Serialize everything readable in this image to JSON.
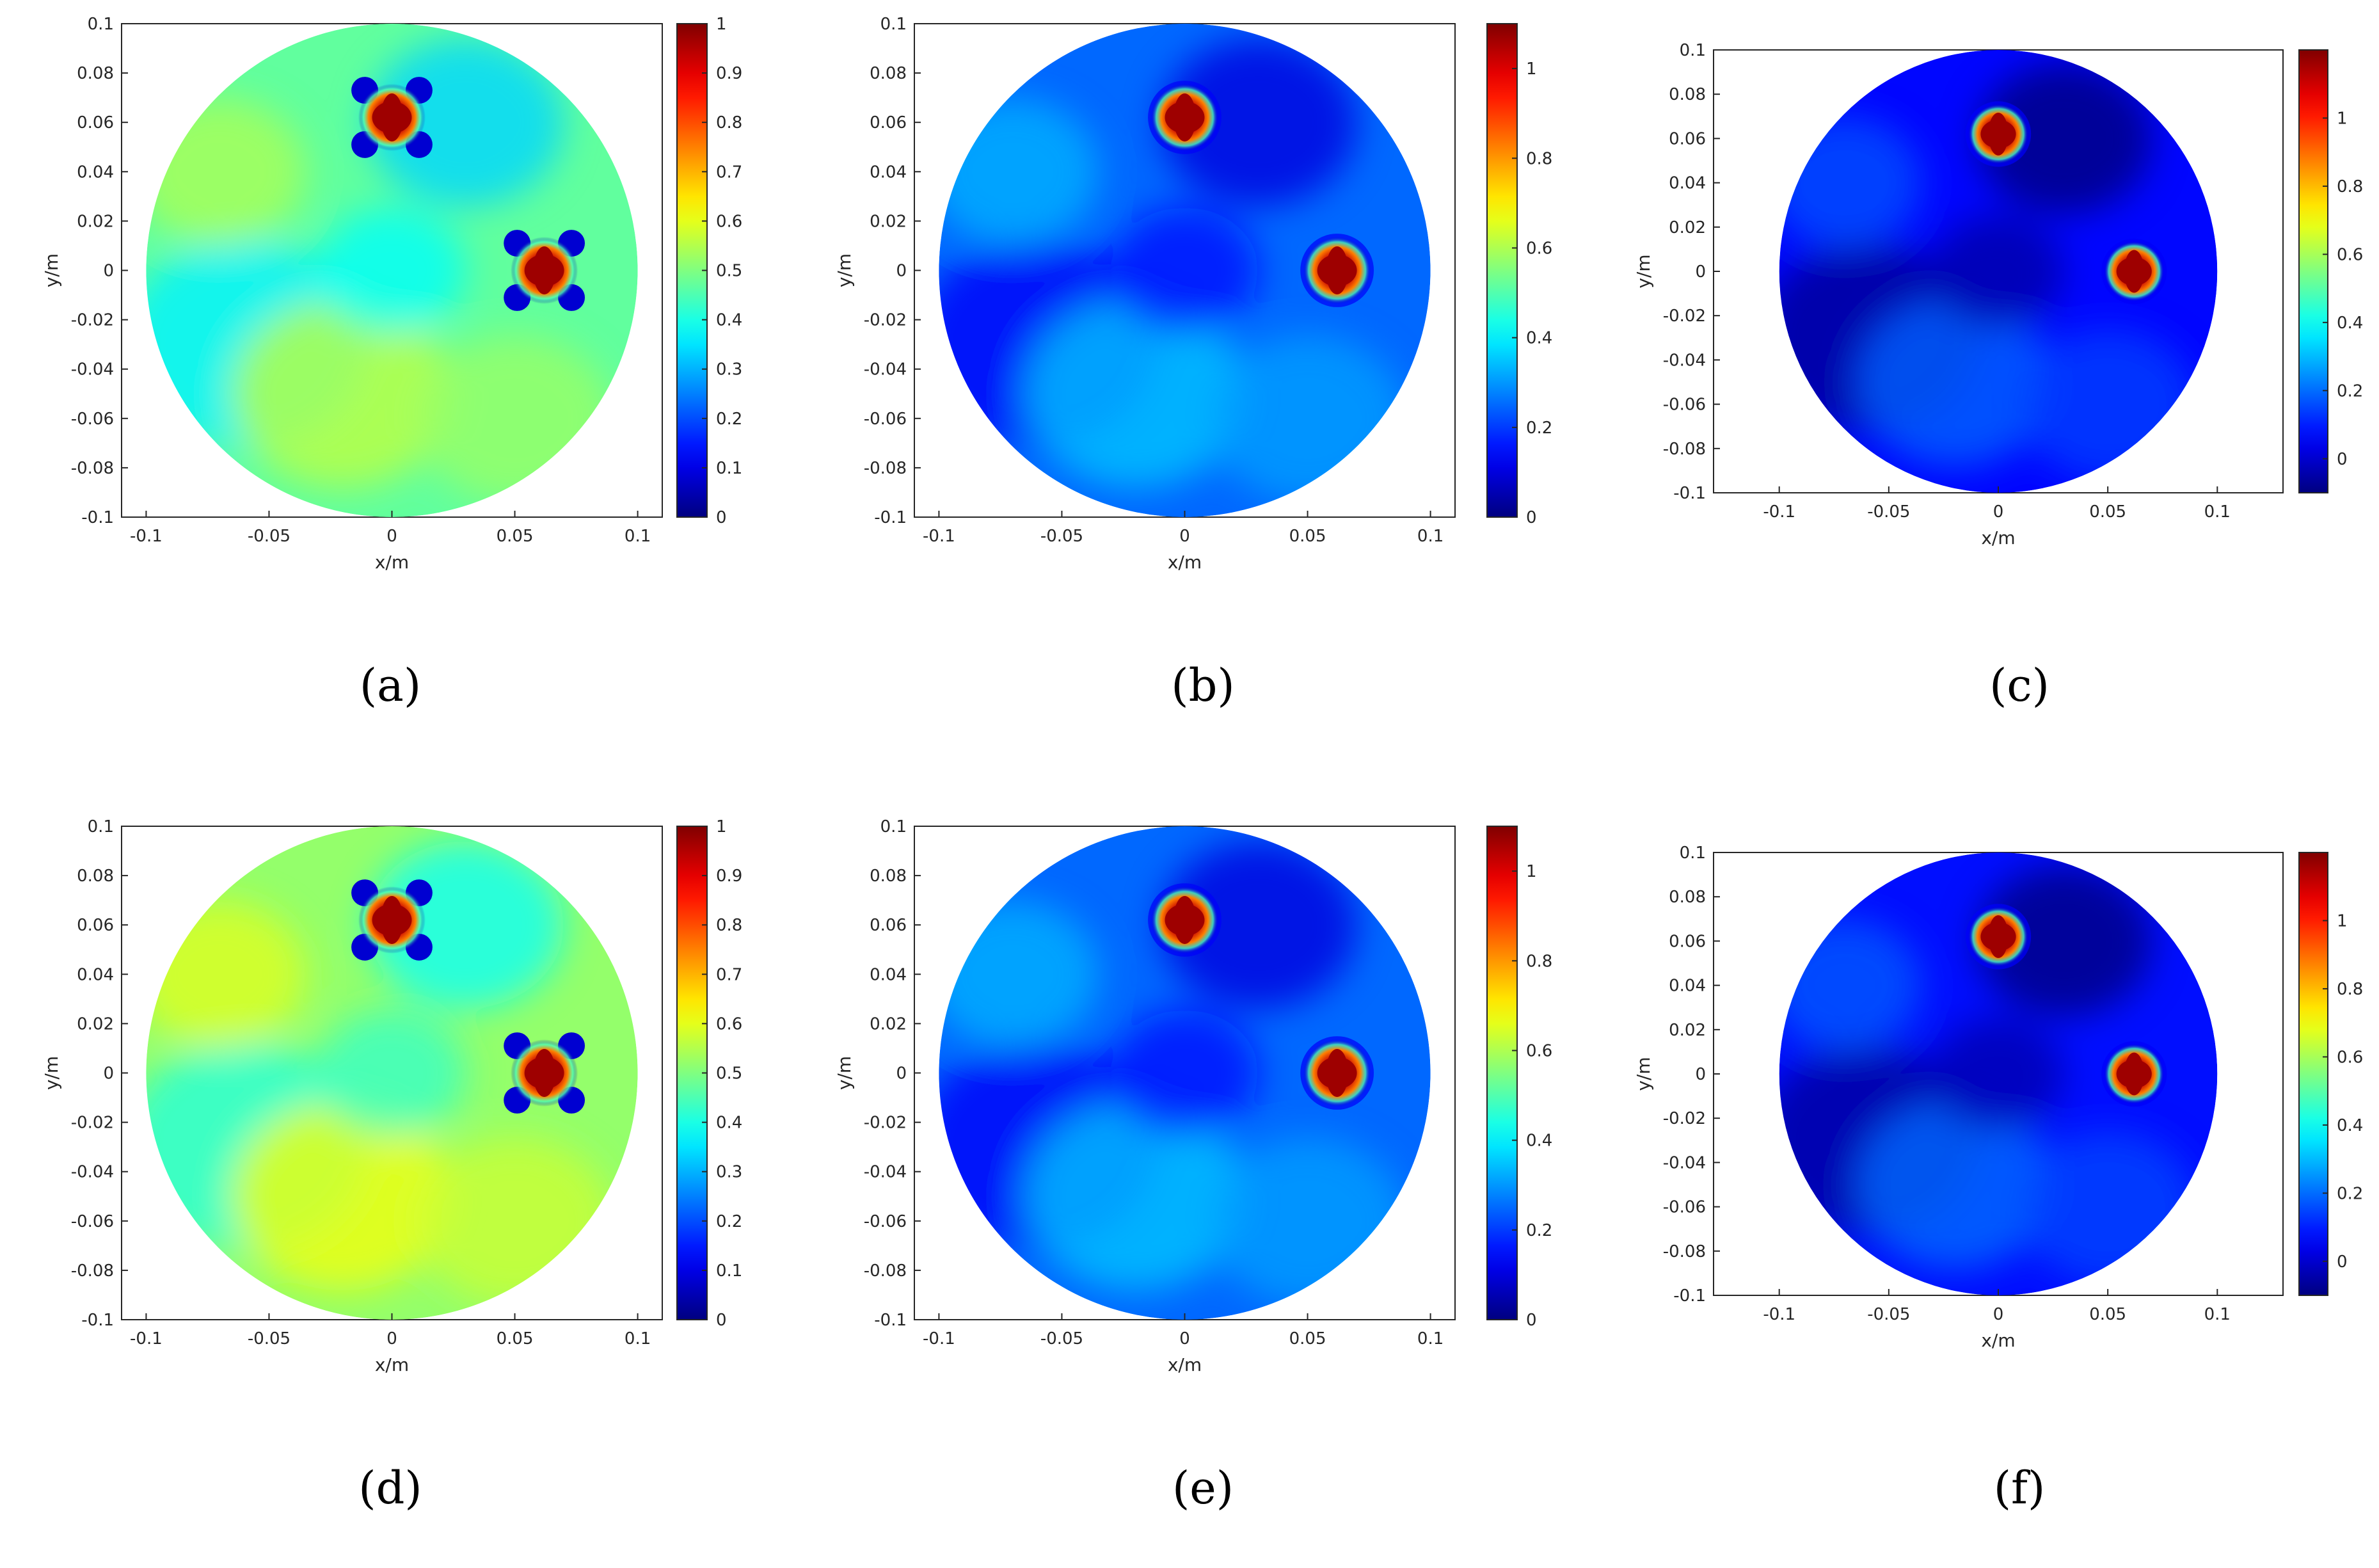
{
  "figure": {
    "panels": [
      {
        "id": "a",
        "label": "(a)",
        "colorbar_max": 1.0,
        "colorbar_ticks": [
          "0",
          "0.1",
          "0.2",
          "0.3",
          "0.4",
          "0.5",
          "0.6",
          "0.7",
          "0.8",
          "0.9",
          "1"
        ]
      },
      {
        "id": "b",
        "label": "(b)",
        "colorbar_max": 1.1,
        "colorbar_ticks": [
          "0",
          "0.2",
          "0.4",
          "0.6",
          "0.8",
          "1"
        ]
      },
      {
        "id": "c",
        "label": "(c)",
        "colorbar_max": 1.2,
        "colorbar_ticks": [
          "0",
          "0.2",
          "0.4",
          "0.6",
          "0.8",
          "1"
        ]
      },
      {
        "id": "d",
        "label": "(d)",
        "colorbar_max": 1.0,
        "colorbar_ticks": [
          "0",
          "0.1",
          "0.2",
          "0.3",
          "0.4",
          "0.5",
          "0.6",
          "0.7",
          "0.8",
          "0.9",
          "1"
        ]
      },
      {
        "id": "e",
        "label": "(e)",
        "colorbar_max": 1.1,
        "colorbar_ticks": [
          "0",
          "0.2",
          "0.4",
          "0.6",
          "0.8",
          "1"
        ]
      },
      {
        "id": "f",
        "label": "(f)",
        "colorbar_max": 1.2,
        "colorbar_ticks": [
          "0",
          "0.2",
          "0.4",
          "0.6",
          "0.8",
          "1"
        ]
      }
    ]
  },
  "chart_data": [
    {
      "type": "heatmap",
      "panel": "(a)",
      "xlabel": "x/m",
      "ylabel": "y/m",
      "xlim": [
        -0.11,
        0.11
      ],
      "ylim": [
        -0.1,
        0.1
      ],
      "xticks": [
        "-0.1",
        "-0.05",
        "0",
        "0.05",
        "0.1"
      ],
      "yticks": [
        "0.1",
        "0.08",
        "0.06",
        "0.04",
        "0.02",
        "0",
        "-0.02",
        "-0.04",
        "-0.06",
        "-0.08",
        "-0.1"
      ],
      "domain": {
        "shape": "circle",
        "center": [
          0,
          0
        ],
        "radius": 0.1
      },
      "background_value": 0.47,
      "inclusions": [
        {
          "x": 0,
          "y": 0.062,
          "value": 1.0
        },
        {
          "x": 0.062,
          "y": 0,
          "value": 1.0
        }
      ],
      "colorbar_range": [
        0,
        1
      ]
    },
    {
      "type": "heatmap",
      "panel": "(b)",
      "xlabel": "x/m",
      "ylabel": "y/m",
      "xlim": [
        -0.11,
        0.11
      ],
      "ylim": [
        -0.1,
        0.1
      ],
      "xticks": [
        "-0.1",
        "-0.05",
        "0",
        "0.05",
        "0.1"
      ],
      "yticks": [
        "0.1",
        "0.08",
        "0.06",
        "0.04",
        "0.02",
        "0",
        "-0.02",
        "-0.04",
        "-0.06",
        "-0.08",
        "-0.1"
      ],
      "domain": {
        "shape": "circle",
        "center": [
          0,
          0
        ],
        "radius": 0.1
      },
      "background_value": 0.25,
      "inclusions": [
        {
          "x": 0,
          "y": 0.062,
          "value": 1.1
        },
        {
          "x": 0.062,
          "y": 0,
          "value": 1.1
        }
      ],
      "colorbar_range": [
        0,
        1.1
      ]
    },
    {
      "type": "heatmap",
      "panel": "(c)",
      "xlabel": "x/m",
      "ylabel": "y/m",
      "xlim": [
        -0.13,
        0.13
      ],
      "ylim": [
        -0.1,
        0.1
      ],
      "xticks": [
        "-0.1",
        "-0.05",
        "0",
        "0.05",
        "0.1"
      ],
      "yticks": [
        "0.1",
        "0.08",
        "0.06",
        "0.04",
        "0.02",
        "0",
        "-0.02",
        "-0.04",
        "-0.06",
        "-0.08",
        "-0.1"
      ],
      "domain": {
        "shape": "circle",
        "center": [
          0,
          0
        ],
        "radius": 0.1
      },
      "background_value": 0.07,
      "inclusions": [
        {
          "x": 0,
          "y": 0.062,
          "value": 1.2
        },
        {
          "x": 0.062,
          "y": 0,
          "value": 1.2
        }
      ],
      "colorbar_range": [
        -0.1,
        1.2
      ]
    },
    {
      "type": "heatmap",
      "panel": "(d)",
      "xlabel": "x/m",
      "ylabel": "y/m",
      "xlim": [
        -0.11,
        0.11
      ],
      "ylim": [
        -0.1,
        0.1
      ],
      "xticks": [
        "-0.1",
        "-0.05",
        "0",
        "0.05",
        "0.1"
      ],
      "yticks": [
        "0.1",
        "0.08",
        "0.06",
        "0.04",
        "0.02",
        "0",
        "-0.02",
        "-0.04",
        "-0.06",
        "-0.08",
        "-0.1"
      ],
      "domain": {
        "shape": "circle",
        "center": [
          0,
          0
        ],
        "radius": 0.1
      },
      "background_value": 0.52,
      "inclusions": [
        {
          "x": 0,
          "y": 0.062,
          "value": 1.0
        },
        {
          "x": 0.062,
          "y": 0,
          "value": 1.0
        }
      ],
      "colorbar_range": [
        0,
        1
      ]
    },
    {
      "type": "heatmap",
      "panel": "(e)",
      "xlabel": "x/m",
      "ylabel": "y/m",
      "xlim": [
        -0.11,
        0.11
      ],
      "ylim": [
        -0.1,
        0.1
      ],
      "xticks": [
        "-0.1",
        "-0.05",
        "0",
        "0.05",
        "0.1"
      ],
      "yticks": [
        "0.1",
        "0.08",
        "0.06",
        "0.04",
        "0.02",
        "0",
        "-0.02",
        "-0.04",
        "-0.06",
        "-0.08",
        "-0.1"
      ],
      "domain": {
        "shape": "circle",
        "center": [
          0,
          0
        ],
        "radius": 0.1
      },
      "background_value": 0.25,
      "inclusions": [
        {
          "x": 0,
          "y": 0.062,
          "value": 1.1
        },
        {
          "x": 0.062,
          "y": 0,
          "value": 1.1
        }
      ],
      "colorbar_range": [
        0,
        1.1
      ]
    },
    {
      "type": "heatmap",
      "panel": "(f)",
      "xlabel": "x/m",
      "ylabel": "y/m",
      "xlim": [
        -0.13,
        0.13
      ],
      "ylim": [
        -0.1,
        0.1
      ],
      "xticks": [
        "-0.1",
        "-0.05",
        "0",
        "0.05",
        "0.1"
      ],
      "yticks": [
        "0.1",
        "0.08",
        "0.06",
        "0.04",
        "0.02",
        "0",
        "-0.02",
        "-0.04",
        "-0.06",
        "-0.08",
        "-0.1"
      ],
      "domain": {
        "shape": "circle",
        "center": [
          0,
          0
        ],
        "radius": 0.1
      },
      "background_value": 0.08,
      "inclusions": [
        {
          "x": 0,
          "y": 0.062,
          "value": 1.2
        },
        {
          "x": 0.062,
          "y": 0,
          "value": 1.2
        }
      ],
      "colorbar_range": [
        -0.1,
        1.2
      ]
    }
  ]
}
